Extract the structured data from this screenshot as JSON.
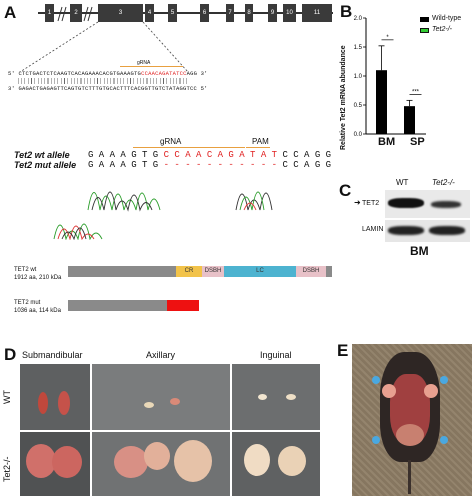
{
  "panels": {
    "A": "A",
    "B": "B",
    "C": "C",
    "D": "D",
    "E": "E"
  },
  "gene_model": {
    "exons": [
      "1",
      "2",
      "3",
      "4",
      "5",
      "6",
      "7",
      "8",
      "9",
      "10",
      "11"
    ]
  },
  "sequence": {
    "grna_label": "gRNA",
    "prefix_top": "5'",
    "suffix_top": "3'",
    "prefix_bottom": "3'",
    "suffix_bottom": "5'",
    "top_before": "CTCTGACTCTCAAGTCACAGAAACACGTGAAAGTG",
    "top_grna": "CCAACAGATATCC",
    "top_after": "AGG",
    "bottom": "GAGACTGAGAGTTCAGTGTCTTTGTGCACTTTCACGGTTGTCTATAGGTCC"
  },
  "alignment": {
    "wt_label": "Tet2 wt allele",
    "mut_label": "Tet2 mut allele",
    "grna_label": "gRNA",
    "pam_label": "PAM",
    "wt_seq_black": "G A A A G T G ",
    "wt_seq_red": "C C A A C A G A T A T ",
    "wt_seq_end": "C C A G G",
    "mut_seq_black": "G A A A G T G ",
    "mut_seq_dash": "- - - - - - - - - - - ",
    "mut_seq_end": "C C A G G"
  },
  "protein": {
    "wt_name": "TET2 wt",
    "wt_size": "1912 aa, 210 kDa",
    "mut_name": "TET2 mut",
    "mut_size": "1036 aa, 114 kDa",
    "domains": [
      "CR",
      "DSBH",
      "LC",
      "DSBH"
    ]
  },
  "chart_data": {
    "type": "bar",
    "categories": [
      "BM",
      "SP"
    ],
    "series": [
      {
        "name": "Wild-type",
        "values": [
          1.1,
          0.48
        ],
        "errors": [
          0.42,
          0.1
        ],
        "color": "#000000"
      },
      {
        "name": "Tet2-/-",
        "values": [
          0.0,
          0.0
        ],
        "errors": [
          0,
          0
        ],
        "color": "#33cc33"
      }
    ],
    "ylabel": "Relative Tet2 mRNA abundance",
    "ylim": [
      0,
      2
    ],
    "yticks": [
      "0.0",
      "0.5",
      "1.0",
      "1.5",
      "2.0"
    ],
    "significance": [
      "*",
      "***"
    ],
    "legend_position": "top-right"
  },
  "western": {
    "wt_label": "WT",
    "ko_label": "Tet2-/-",
    "tet2_label": "TET2",
    "lamin_label": "LAMIN B1",
    "tissue": "BM"
  },
  "lymph": {
    "columns": [
      "Submandibular",
      "Axillary",
      "Inguinal"
    ],
    "rows": [
      "WT",
      "Tet2-/-"
    ]
  },
  "colors": {
    "cr": "#f2c34a",
    "dsbh": "#e8c1c8",
    "lc": "#4db3d0",
    "backbone": "#8a8a8a",
    "mut_red": "#ee1111",
    "grna_red": "#e02020",
    "pam_line": "#e8a040"
  }
}
